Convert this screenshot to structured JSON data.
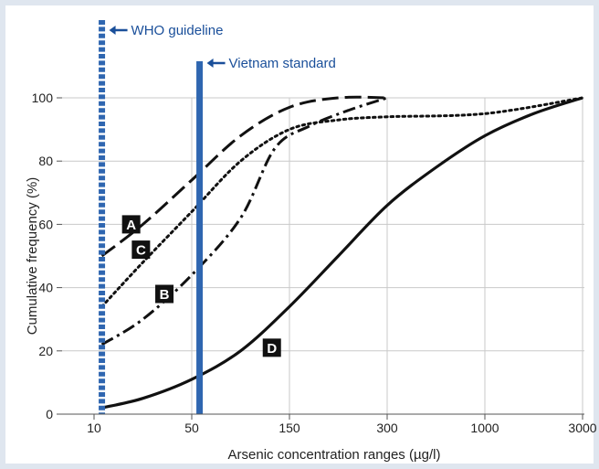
{
  "chart_data": {
    "type": "line",
    "title": "",
    "xlabel": "Arsenic concentration ranges (µg/l)",
    "ylabel": "Cumulative frequency (%)",
    "x_categories": [
      "10",
      "50",
      "150",
      "300",
      "1000",
      "3000"
    ],
    "ylim": [
      0,
      100
    ],
    "yticks": [
      0,
      20,
      40,
      60,
      80,
      100
    ],
    "grid": true,
    "reference_lines": [
      {
        "label": "WHO guideline",
        "x_category_index": 0.08,
        "style": "dashed",
        "color": "#2f66b0"
      },
      {
        "label": "Vietnam standard",
        "x_category_index": 1.08,
        "style": "solid",
        "color": "#2f66b0"
      }
    ],
    "series": [
      {
        "name": "A",
        "style": "dashed",
        "points": [
          [
            0.08,
            50
          ],
          [
            0.5,
            60
          ],
          [
            1.0,
            74
          ],
          [
            1.5,
            88
          ],
          [
            2.0,
            97
          ],
          [
            2.5,
            100
          ],
          [
            3.0,
            100
          ]
        ],
        "label_at": [
          0.38,
          60
        ]
      },
      {
        "name": "B",
        "style": "dashdot",
        "points": [
          [
            0.08,
            22
          ],
          [
            0.5,
            30
          ],
          [
            1.0,
            44
          ],
          [
            1.5,
            62
          ],
          [
            1.85,
            84
          ],
          [
            2.2,
            91
          ],
          [
            2.6,
            96
          ],
          [
            3.0,
            100
          ]
        ],
        "label_at": [
          0.72,
          38
        ]
      },
      {
        "name": "C",
        "style": "dotted",
        "points": [
          [
            0.08,
            34
          ],
          [
            0.5,
            48
          ],
          [
            1.0,
            64
          ],
          [
            1.5,
            80
          ],
          [
            2.0,
            90
          ],
          [
            2.5,
            93
          ],
          [
            3.0,
            94
          ],
          [
            4.0,
            95
          ],
          [
            5.0,
            100
          ]
        ],
        "label_at": [
          0.48,
          52
        ]
      },
      {
        "name": "D",
        "style": "solid",
        "points": [
          [
            0.08,
            2
          ],
          [
            0.5,
            5
          ],
          [
            1.0,
            11
          ],
          [
            1.5,
            20
          ],
          [
            2.0,
            34
          ],
          [
            2.5,
            50
          ],
          [
            3.0,
            66
          ],
          [
            3.5,
            78
          ],
          [
            4.0,
            88
          ],
          [
            4.5,
            95
          ],
          [
            5.0,
            100
          ]
        ],
        "label_at": [
          1.82,
          21
        ]
      }
    ]
  }
}
